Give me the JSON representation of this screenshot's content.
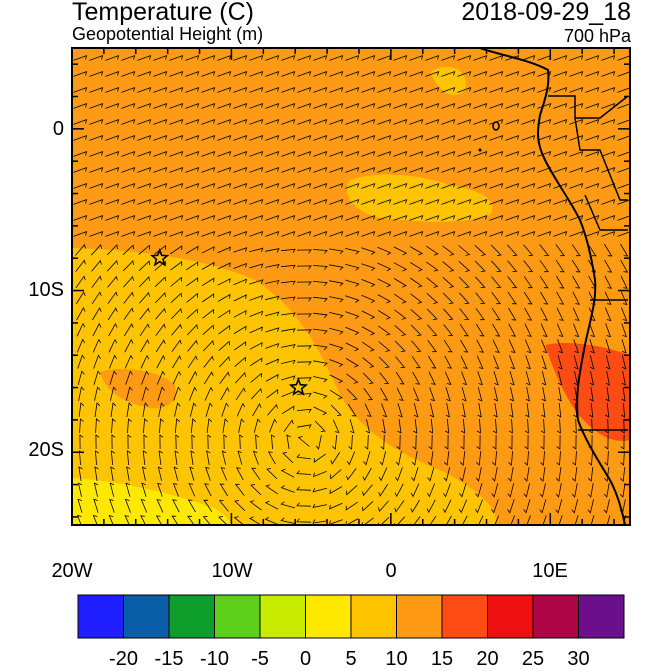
{
  "header": {
    "title": "Temperature (C)",
    "subtitle": "Geopotential Height (m)",
    "datetime": "2018-09-29_18",
    "level": "700 hPa"
  },
  "axes": {
    "y_ticks": [
      "0",
      "10S",
      "20S"
    ],
    "x_ticks": [
      "20W",
      "10W",
      "0",
      "10E"
    ],
    "lon_range": [
      -20,
      15
    ],
    "lat_range": [
      -24.5,
      5
    ]
  },
  "colorbar": {
    "colors": [
      "#1f1fff",
      "#0a5ea8",
      "#0e9e2c",
      "#5ccf1a",
      "#c8ec00",
      "#ffe800",
      "#ffc400",
      "#ff9a14",
      "#ff4c14",
      "#ee0f10",
      "#ad0546",
      "#6b0f8c"
    ],
    "labels": [
      "-20",
      "-15",
      "-10",
      "-5",
      "0",
      "5",
      "10",
      "15",
      "20",
      "25",
      "30"
    ]
  },
  "markers": [
    {
      "name": "star-1",
      "lon": -14.5,
      "lat": -8
    },
    {
      "name": "star-2",
      "lon": -5.8,
      "lat": -16
    }
  ],
  "field_colors": {
    "warm_orange": "#ff9a14",
    "light_orange": "#ffc400",
    "yellow": "#ffe800",
    "red_orange": "#ff4c14"
  }
}
